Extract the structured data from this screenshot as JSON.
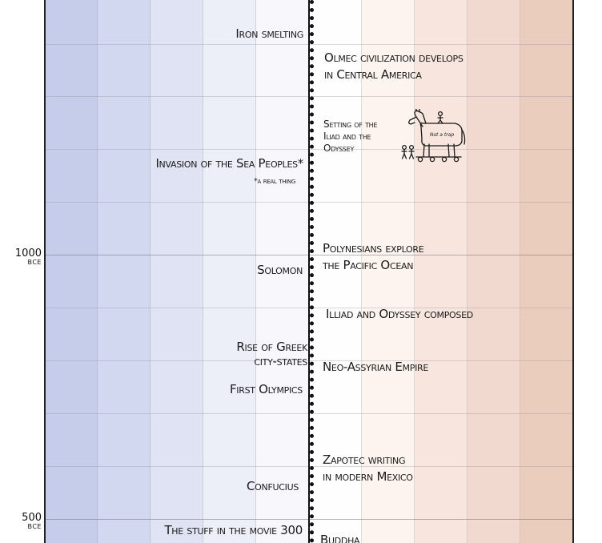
{
  "axis": {
    "ticks": [
      {
        "label": "1000",
        "unit": "BCE"
      },
      {
        "label": "500",
        "unit": "BCE"
      }
    ]
  },
  "band_colors": [
    "#c6cdea",
    "#d2d8ef",
    "#dfe3f3",
    "#eceef8",
    "#f8f8fc",
    "#fefefe",
    "#fdf4f0",
    "#f7e5de",
    "#f1d9cf",
    "#ebcdbe"
  ],
  "events_left": [
    {
      "id": "iron",
      "lines": [
        "Iron smelting"
      ]
    },
    {
      "id": "sea-peoples",
      "lines": [
        "Invasion of the Sea Peoples*"
      ]
    },
    {
      "id": "sea-peoples-note",
      "lines": [
        "*a real thing"
      ]
    },
    {
      "id": "solomon",
      "lines": [
        "Solomon"
      ]
    },
    {
      "id": "greek",
      "lines": [
        "Rise of Greek",
        "city-states"
      ]
    },
    {
      "id": "olympics",
      "lines": [
        "First Olympics"
      ]
    },
    {
      "id": "confucius",
      "lines": [
        "Confucius"
      ]
    },
    {
      "id": "movie300",
      "lines": [
        "The stuff in the movie 300"
      ]
    }
  ],
  "events_right": [
    {
      "id": "olmec",
      "lines": [
        "Olmec civilization develops",
        "in Central America"
      ]
    },
    {
      "id": "iliad-setting",
      "lines": [
        "Setting of the",
        "Iliad and the",
        "Odyssey"
      ]
    },
    {
      "id": "polynesians",
      "lines": [
        "Polynesians explore",
        "the Pacific Ocean"
      ]
    },
    {
      "id": "iliad-composed",
      "lines": [
        "Illiad and Odyssey composed"
      ]
    },
    {
      "id": "assyrian",
      "lines": [
        "Neo-Assyrian Empire"
      ]
    },
    {
      "id": "zapotec",
      "lines": [
        "Zapotec writing",
        "in modern Mexico"
      ]
    },
    {
      "id": "buddha",
      "lines": [
        "Buddha"
      ]
    }
  ],
  "horse_sign": "Not a trap"
}
